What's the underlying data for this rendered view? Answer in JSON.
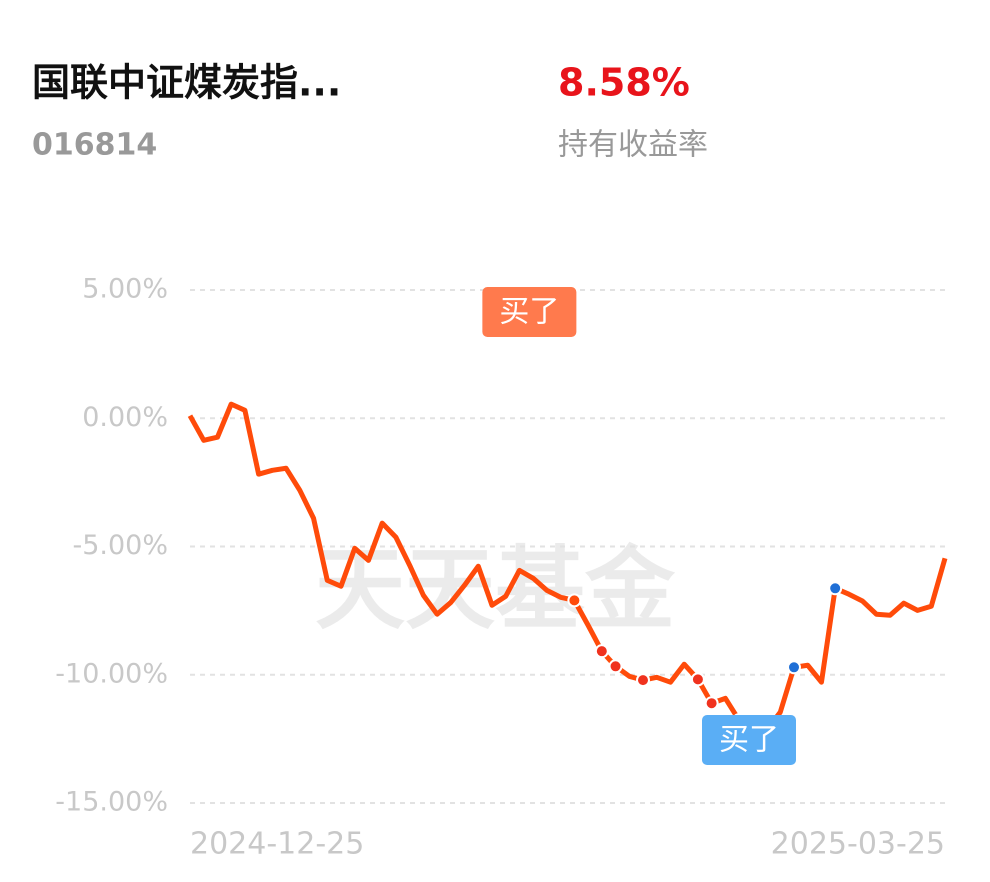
{
  "header": {
    "title": "国联中证煤炭指...",
    "code": "016814",
    "return_value": "8.58%",
    "return_label": "持有收益率"
  },
  "chart_data": {
    "type": "line",
    "categories": [
      "2024-12-25",
      null,
      null,
      null,
      null,
      null,
      null,
      null,
      null,
      null,
      null,
      null,
      null,
      null,
      null,
      null,
      null,
      null,
      null,
      null,
      null,
      null,
      null,
      null,
      null,
      null,
      null,
      null,
      null,
      null,
      null,
      null,
      null,
      null,
      null,
      null,
      null,
      null,
      null,
      null,
      null,
      null,
      null,
      null,
      null,
      null,
      null,
      null,
      null,
      null,
      null,
      null,
      null,
      null,
      null,
      "2025-03-25"
    ],
    "series": [
      {
        "color": "#ff4b0a",
        "values": [
          0.1,
          -0.86,
          -0.74,
          0.55,
          0.31,
          -2.18,
          -2.03,
          -1.95,
          -2.81,
          -3.9,
          -6.32,
          -6.55,
          -5.07,
          -5.54,
          -4.09,
          -4.64,
          -5.73,
          -6.9,
          -7.64,
          -7.18,
          -6.51,
          -5.77,
          -7.29,
          -6.94,
          -5.93,
          -6.24,
          -6.71,
          -6.98,
          -7.1,
          -8.07,
          -9.08,
          -9.67,
          -10.06,
          -10.21,
          -10.1,
          -10.29,
          -9.59,
          -10.18,
          -11.11,
          -10.92,
          -11.77,
          -12.36,
          -12.16,
          -11.46,
          -9.71,
          -9.63,
          -10.29,
          -6.63,
          -6.86,
          -7.13,
          -7.64,
          -7.68,
          -7.21,
          -7.49,
          -7.33,
          -5.46
        ]
      }
    ],
    "ylim": [
      -15,
      5
    ],
    "yticks": [
      {
        "value": 5,
        "label": "5.00%"
      },
      {
        "value": 0,
        "label": "0.00%"
      },
      {
        "value": -5,
        "label": "-5.00%"
      },
      {
        "value": -10,
        "label": "-10.00%"
      },
      {
        "value": -15,
        "label": "-15.00%"
      }
    ],
    "grid": true,
    "annotations": [
      "买了",
      "买了"
    ],
    "watermark": "天天基金"
  }
}
